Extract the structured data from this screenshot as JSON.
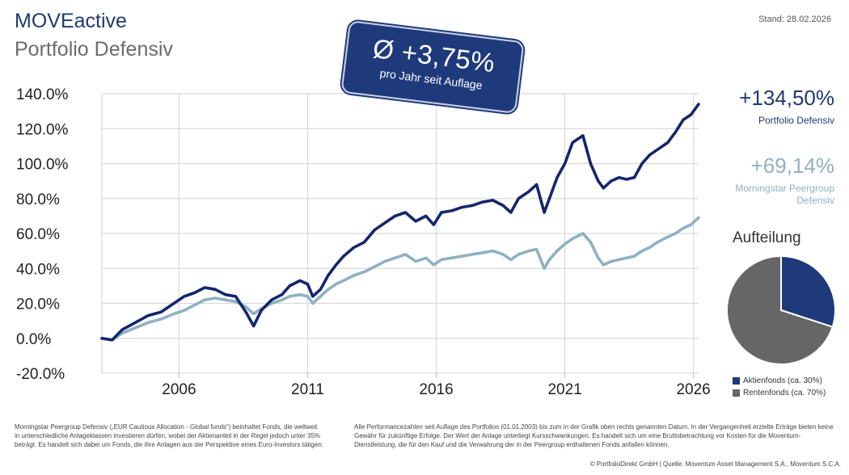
{
  "header": {
    "title": "MOVEactive",
    "subtitle": "Portfolio Defensiv",
    "stand": "Stand: 28.02.2026"
  },
  "badge": {
    "main": "Ø +3,75%",
    "sub": "pro Jahr seit Auflage"
  },
  "stats": {
    "portfolio_value": "+134,50%",
    "portfolio_label": "Portfolio Defensiv",
    "peergroup_value": "+69,14%",
    "peergroup_label": "Morningstar Peergroup Defensiv"
  },
  "allocation": {
    "title": "Aufteilung",
    "slices": [
      {
        "label": "Aktienfonds (ca. 30%)",
        "value": 30,
        "color": "#1f3a7a"
      },
      {
        "label": "Rentenfonds (ca. 70%)",
        "value": 70,
        "color": "#666666"
      }
    ]
  },
  "chart_data": {
    "type": "line",
    "ylim": [
      -20,
      140
    ],
    "yticks": [
      "140.0%",
      "120.0%",
      "100.0%",
      "80.0%",
      "60.0%",
      "40.0%",
      "20.0%",
      "0.0%",
      "-20.0%"
    ],
    "xlim": [
      2003.0,
      2026.2
    ],
    "xticks": [
      "2006",
      "2011",
      "2016",
      "2021",
      "2026"
    ],
    "grid": true,
    "series": [
      {
        "name": "Portfolio Defensiv",
        "color": "#14266b",
        "x": [
          2003.0,
          2003.4,
          2003.8,
          2004.3,
          2004.8,
          2005.3,
          2005.8,
          2006.2,
          2006.6,
          2007.0,
          2007.4,
          2007.8,
          2008.2,
          2008.6,
          2008.9,
          2009.2,
          2009.6,
          2010.0,
          2010.3,
          2010.7,
          2011.0,
          2011.2,
          2011.5,
          2011.8,
          2012.1,
          2012.4,
          2012.8,
          2013.2,
          2013.6,
          2014.0,
          2014.4,
          2014.8,
          2015.2,
          2015.6,
          2015.9,
          2016.2,
          2016.6,
          2017.0,
          2017.4,
          2017.8,
          2018.2,
          2018.6,
          2018.9,
          2019.2,
          2019.6,
          2019.9,
          2020.2,
          2020.4,
          2020.7,
          2021.0,
          2021.3,
          2021.7,
          2022.0,
          2022.3,
          2022.5,
          2022.8,
          2023.1,
          2023.4,
          2023.7,
          2024.0,
          2024.3,
          2024.6,
          2025.0,
          2025.3,
          2025.6,
          2025.9,
          2026.2
        ],
        "y": [
          0,
          -1,
          5,
          9,
          13,
          15,
          20,
          24,
          26,
          29,
          28,
          25,
          24,
          15,
          7,
          16,
          22,
          25,
          30,
          33,
          31,
          24,
          28,
          36,
          42,
          47,
          52,
          55,
          62,
          66,
          70,
          72,
          67,
          70,
          65,
          72,
          73,
          75,
          76,
          78,
          79,
          76,
          72,
          80,
          84,
          88,
          72,
          80,
          92,
          100,
          112,
          116,
          100,
          90,
          86,
          90,
          92,
          91,
          92,
          100,
          105,
          108,
          112,
          118,
          125,
          128,
          134
        ]
      },
      {
        "name": "Morningstar Peergroup Defensiv",
        "color": "#8fb1c2",
        "x": [
          2003.0,
          2003.4,
          2003.8,
          2004.3,
          2004.8,
          2005.3,
          2005.8,
          2006.2,
          2006.6,
          2007.0,
          2007.4,
          2007.8,
          2008.2,
          2008.6,
          2008.9,
          2009.2,
          2009.6,
          2010.0,
          2010.3,
          2010.7,
          2011.0,
          2011.2,
          2011.5,
          2011.8,
          2012.1,
          2012.4,
          2012.8,
          2013.2,
          2013.6,
          2014.0,
          2014.4,
          2014.8,
          2015.2,
          2015.6,
          2015.9,
          2016.2,
          2016.6,
          2017.0,
          2017.4,
          2017.8,
          2018.2,
          2018.6,
          2018.9,
          2019.2,
          2019.6,
          2019.9,
          2020.2,
          2020.4,
          2020.7,
          2021.0,
          2021.3,
          2021.7,
          2022.0,
          2022.3,
          2022.5,
          2022.8,
          2023.1,
          2023.4,
          2023.7,
          2024.0,
          2024.3,
          2024.6,
          2025.0,
          2025.3,
          2025.6,
          2025.9,
          2026.2
        ],
        "y": [
          0,
          -1,
          3,
          6,
          9,
          11,
          14,
          16,
          19,
          22,
          23,
          22,
          21,
          18,
          14,
          17,
          20,
          22,
          24,
          25,
          24,
          20,
          24,
          28,
          31,
          33,
          36,
          38,
          41,
          44,
          46,
          48,
          44,
          46,
          42,
          45,
          46,
          47,
          48,
          49,
          50,
          48,
          45,
          48,
          50,
          51,
          40,
          45,
          50,
          54,
          57,
          60,
          55,
          46,
          42,
          44,
          45,
          46,
          47,
          50,
          52,
          55,
          58,
          60,
          63,
          65,
          69
        ]
      }
    ]
  },
  "footer": {
    "left": "Morningstar Peergroup Defensiv („EUR Cautious Allocation - Global funds“) beinhaltet Fonds, die weltweit in unterschiedliche Anlageklassen investieren dürfen, wobei der Aktienanteil in der Regel jedoch unter 35% beträgt. Es handelt sich dabei um Fonds, die ihre Anlagen aus der Perspektive eines Euro-Investors tätigen.",
    "right": "Alle Performancezahlen seit Auflage des Portfolios (01.01.2003) bis zum in der Grafik oben rechts genannten Datum. In der Vergangenheit erzielte Erträge bieten keine Gewähr für zukünftige Erfolge. Der Wert der Anlage unterliegt Kursschwankungen. Es handelt sich um eine Bruttobetrachtung vor Kosten für die Moventum-Dienstleistung, die für den Kauf und die Verwahrung der in der Peergroup enthaltenen Fonds anfallen können.",
    "copyright": "© PortfolioDirekt GmbH | Quelle: Moventum Asset Management S.A., Moventum S.C.A."
  }
}
